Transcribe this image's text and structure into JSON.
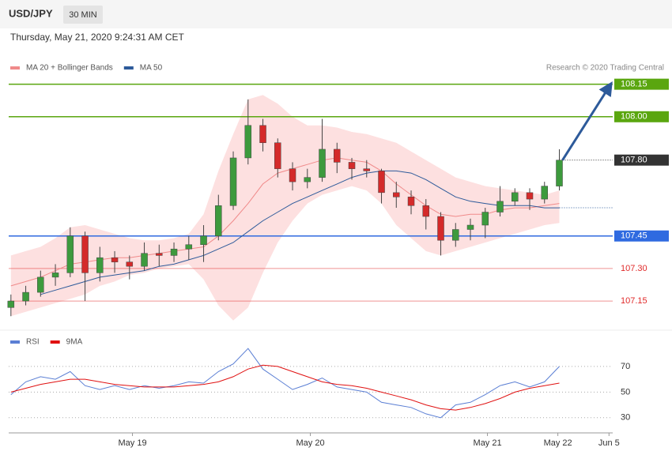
{
  "header": {
    "symbol": "USD/JPY",
    "interval": "30 MIN",
    "timestamp": "Thursday, May 21, 2020 9:24:31 AM CET"
  },
  "chart_data": [
    {
      "type": "candlestick",
      "credit": "Research © 2020 Trading Central",
      "x": [
        0,
        2,
        4,
        6,
        8,
        10,
        12,
        14,
        16,
        18,
        20,
        22,
        24,
        26,
        28,
        30,
        32,
        34,
        36,
        38,
        40,
        42,
        44,
        46,
        48,
        50,
        52,
        54,
        56,
        58,
        60,
        62,
        64,
        66,
        68,
        70,
        72,
        74
      ],
      "open": [
        107.12,
        107.15,
        107.19,
        107.26,
        107.28,
        107.45,
        107.28,
        107.35,
        107.33,
        107.31,
        107.37,
        107.36,
        107.39,
        107.41,
        107.45,
        107.59,
        107.81,
        107.96,
        107.88,
        107.76,
        107.7,
        107.72,
        107.85,
        107.79,
        107.76,
        107.75,
        107.65,
        107.63,
        107.59,
        107.54,
        107.43,
        107.48,
        107.5,
        107.56,
        107.61,
        107.65,
        107.62,
        107.68
      ],
      "high": [
        107.18,
        107.22,
        107.29,
        107.32,
        107.49,
        107.47,
        107.4,
        107.38,
        107.36,
        107.42,
        107.41,
        107.42,
        107.45,
        107.5,
        107.64,
        107.84,
        108.08,
        107.99,
        107.9,
        107.79,
        107.76,
        107.99,
        107.88,
        107.81,
        107.8,
        107.76,
        107.7,
        107.66,
        107.62,
        107.56,
        107.51,
        107.53,
        107.58,
        107.68,
        107.67,
        107.67,
        107.7,
        107.85
      ],
      "low": [
        107.08,
        107.13,
        107.17,
        107.22,
        107.26,
        107.15,
        107.24,
        107.28,
        107.25,
        107.29,
        107.31,
        107.33,
        107.34,
        107.33,
        107.43,
        107.57,
        107.78,
        107.84,
        107.72,
        107.66,
        107.67,
        107.7,
        107.74,
        107.71,
        107.72,
        107.6,
        107.58,
        107.55,
        107.48,
        107.36,
        107.4,
        107.43,
        107.44,
        107.54,
        107.59,
        107.57,
        107.6,
        107.66
      ],
      "close": [
        107.15,
        107.19,
        107.26,
        107.28,
        107.45,
        107.28,
        107.35,
        107.33,
        107.31,
        107.37,
        107.36,
        107.39,
        107.41,
        107.45,
        107.59,
        107.81,
        107.96,
        107.88,
        107.76,
        107.7,
        107.72,
        107.85,
        107.79,
        107.76,
        107.75,
        107.65,
        107.63,
        107.59,
        107.54,
        107.43,
        107.48,
        107.5,
        107.56,
        107.61,
        107.65,
        107.62,
        107.68,
        107.8
      ],
      "up_color": "#3d9a3d",
      "down_color": "#d42a2a",
      "series": [
        {
          "name": "MA 20 + Bollinger Bands",
          "color": "#f08a8a",
          "band_color": "#fde0e0",
          "values": [
            107.22,
            107.24,
            107.26,
            107.29,
            107.32,
            107.33,
            107.34,
            107.35,
            107.35,
            107.36,
            107.37,
            107.38,
            107.39,
            107.4,
            107.45,
            107.52,
            107.6,
            107.69,
            107.74,
            107.76,
            107.78,
            107.8,
            107.81,
            107.8,
            107.79,
            107.75,
            107.69,
            107.64,
            107.59,
            107.55,
            107.54,
            107.55,
            107.55,
            107.57,
            107.58,
            107.58,
            107.59,
            107.6
          ],
          "upper": [
            107.36,
            107.38,
            107.4,
            107.44,
            107.49,
            107.5,
            107.48,
            107.46,
            107.44,
            107.43,
            107.43,
            107.44,
            107.46,
            107.55,
            107.75,
            107.92,
            108.08,
            108.1,
            108.06,
            108.0,
            107.96,
            107.96,
            107.95,
            107.93,
            107.92,
            107.9,
            107.88,
            107.84,
            107.8,
            107.76,
            107.72,
            107.7,
            107.68,
            107.67,
            107.66,
            107.65,
            107.64,
            107.66
          ],
          "lower": [
            107.08,
            107.1,
            107.12,
            107.14,
            107.16,
            107.18,
            107.22,
            107.24,
            107.27,
            107.28,
            107.3,
            107.31,
            107.32,
            107.25,
            107.13,
            107.06,
            107.12,
            107.28,
            107.42,
            107.52,
            107.6,
            107.64,
            107.66,
            107.68,
            107.66,
            107.6,
            107.5,
            107.44,
            107.38,
            107.36,
            107.38,
            107.4,
            107.42,
            107.44,
            107.46,
            107.48,
            107.5,
            107.51
          ]
        },
        {
          "name": "MA 50",
          "color": "#2d5a9a",
          "values": [
            null,
            null,
            107.18,
            107.2,
            107.22,
            107.24,
            107.26,
            107.27,
            107.28,
            107.29,
            107.31,
            107.32,
            107.34,
            107.36,
            107.39,
            107.42,
            107.47,
            107.52,
            107.56,
            107.6,
            107.63,
            107.66,
            107.69,
            107.72,
            107.74,
            107.75,
            107.75,
            107.74,
            107.71,
            107.67,
            107.63,
            107.61,
            107.6,
            107.59,
            107.59,
            107.59,
            107.58,
            107.58
          ]
        }
      ],
      "xlim": [
        -0.3,
        81.2
      ],
      "ylim": [
        107.03,
        108.4
      ],
      "levels": [
        {
          "value": 108.15,
          "color": "#5aa60f",
          "box": true,
          "line": "full"
        },
        {
          "value": 108.0,
          "label": "108.00",
          "color": "#5aa60f",
          "box": true,
          "line": "full"
        },
        {
          "value": 107.8,
          "label": "107.80",
          "color": "#333333",
          "box": true,
          "line": "dotted"
        },
        {
          "value": 107.45,
          "color": "#2f6ae0",
          "box": true,
          "line": "full"
        },
        {
          "value": 107.3,
          "label": "107.30",
          "color": "#e02a2a",
          "box": false,
          "line": "full"
        },
        {
          "value": 107.15,
          "color": "#e02a2a",
          "box": false,
          "line": "full"
        }
      ]
    },
    {
      "type": "line",
      "x": [
        0,
        2,
        4,
        6,
        8,
        10,
        12,
        14,
        16,
        18,
        20,
        22,
        24,
        26,
        28,
        30,
        32,
        34,
        36,
        38,
        40,
        42,
        44,
        46,
        48,
        50,
        52,
        54,
        56,
        58,
        60,
        62,
        64,
        66,
        68,
        70,
        72,
        74
      ],
      "series": [
        {
          "name": "RSI",
          "color": "#5b7fd4",
          "values": [
            48,
            58,
            62,
            60,
            66,
            55,
            52,
            55,
            52,
            55,
            53,
            55,
            58,
            57,
            66,
            72,
            84,
            68,
            60,
            52,
            56,
            61,
            54,
            52,
            50,
            42,
            40,
            38,
            33,
            30,
            40,
            42,
            48,
            55,
            58,
            54,
            58,
            70
          ]
        },
        {
          "name": "9MA",
          "color": "#e01010",
          "values": [
            50,
            53,
            56,
            58,
            60,
            60,
            58,
            56,
            55,
            54,
            54,
            54,
            55,
            56,
            58,
            62,
            68,
            71,
            70,
            66,
            62,
            58,
            56,
            55,
            53,
            50,
            47,
            44,
            40,
            37,
            36,
            38,
            41,
            45,
            50,
            53,
            55,
            57
          ]
        }
      ],
      "xlim": [
        -0.3,
        81.2
      ],
      "ylim": [
        20,
        94
      ],
      "yticks": [
        30,
        50,
        70
      ],
      "xticks": [
        {
          "value": 16.4,
          "label": "May 19"
        },
        {
          "value": 40.4,
          "label": "May 20"
        },
        {
          "value": 64.3,
          "label": "May 21"
        },
        {
          "value": 73.8,
          "label": "May 22"
        },
        {
          "value": 80.7,
          "label": "Jun 5"
        }
      ]
    }
  ]
}
